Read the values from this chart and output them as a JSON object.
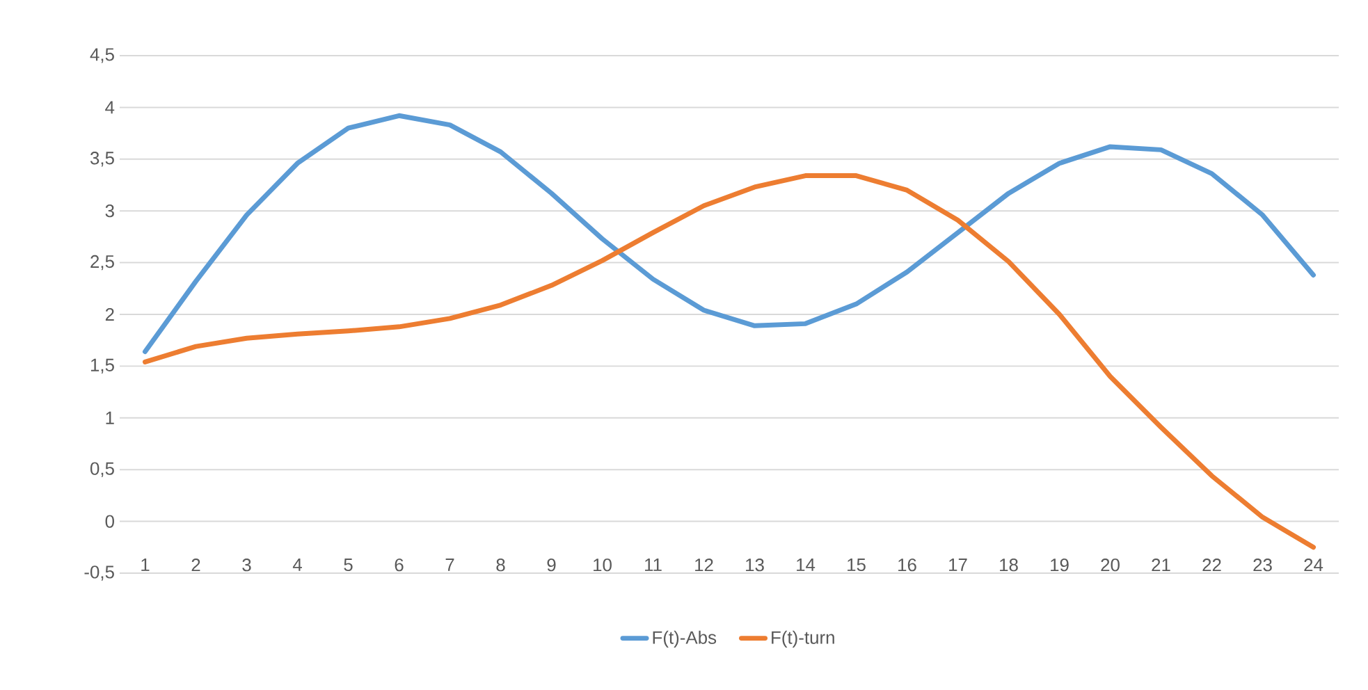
{
  "chart_data": {
    "type": "line",
    "categories": [
      "1",
      "2",
      "3",
      "4",
      "5",
      "6",
      "7",
      "8",
      "9",
      "10",
      "11",
      "12",
      "13",
      "14",
      "15",
      "16",
      "17",
      "18",
      "19",
      "20",
      "21",
      "22",
      "23",
      "24"
    ],
    "series": [
      {
        "name": "F(t)-Abs",
        "color": "#5b9bd5",
        "values": [
          1.64,
          2.32,
          2.96,
          3.46,
          3.8,
          3.92,
          3.83,
          3.57,
          3.17,
          2.73,
          2.34,
          2.04,
          1.89,
          1.91,
          2.1,
          2.41,
          2.79,
          3.17,
          3.46,
          3.62,
          3.59,
          3.36,
          2.96,
          2.38
        ]
      },
      {
        "name": "F(t)-turn",
        "color": "#ed7d31",
        "values": [
          1.54,
          1.69,
          1.77,
          1.81,
          1.84,
          1.88,
          1.96,
          2.09,
          2.28,
          2.52,
          2.79,
          3.05,
          3.23,
          3.34,
          3.34,
          3.2,
          2.91,
          2.51,
          2.0,
          1.4,
          0.91,
          0.44,
          0.04,
          -0.25
        ]
      }
    ],
    "ylim": [
      -0.5,
      4.5
    ],
    "yticks": [
      {
        "value": -0.5,
        "label": "-0,5"
      },
      0,
      {
        "value": 0.5,
        "label": "0,5"
      },
      1,
      {
        "value": 1.5,
        "label": "1,5"
      },
      2,
      {
        "value": 2.5,
        "label": "2,5"
      },
      3,
      {
        "value": 3.5,
        "label": "3,5"
      },
      4,
      {
        "value": 4.5,
        "label": "4,5"
      }
    ],
    "grid": "y",
    "legend": "bottom",
    "marker": "none",
    "line_style": "solid"
  }
}
